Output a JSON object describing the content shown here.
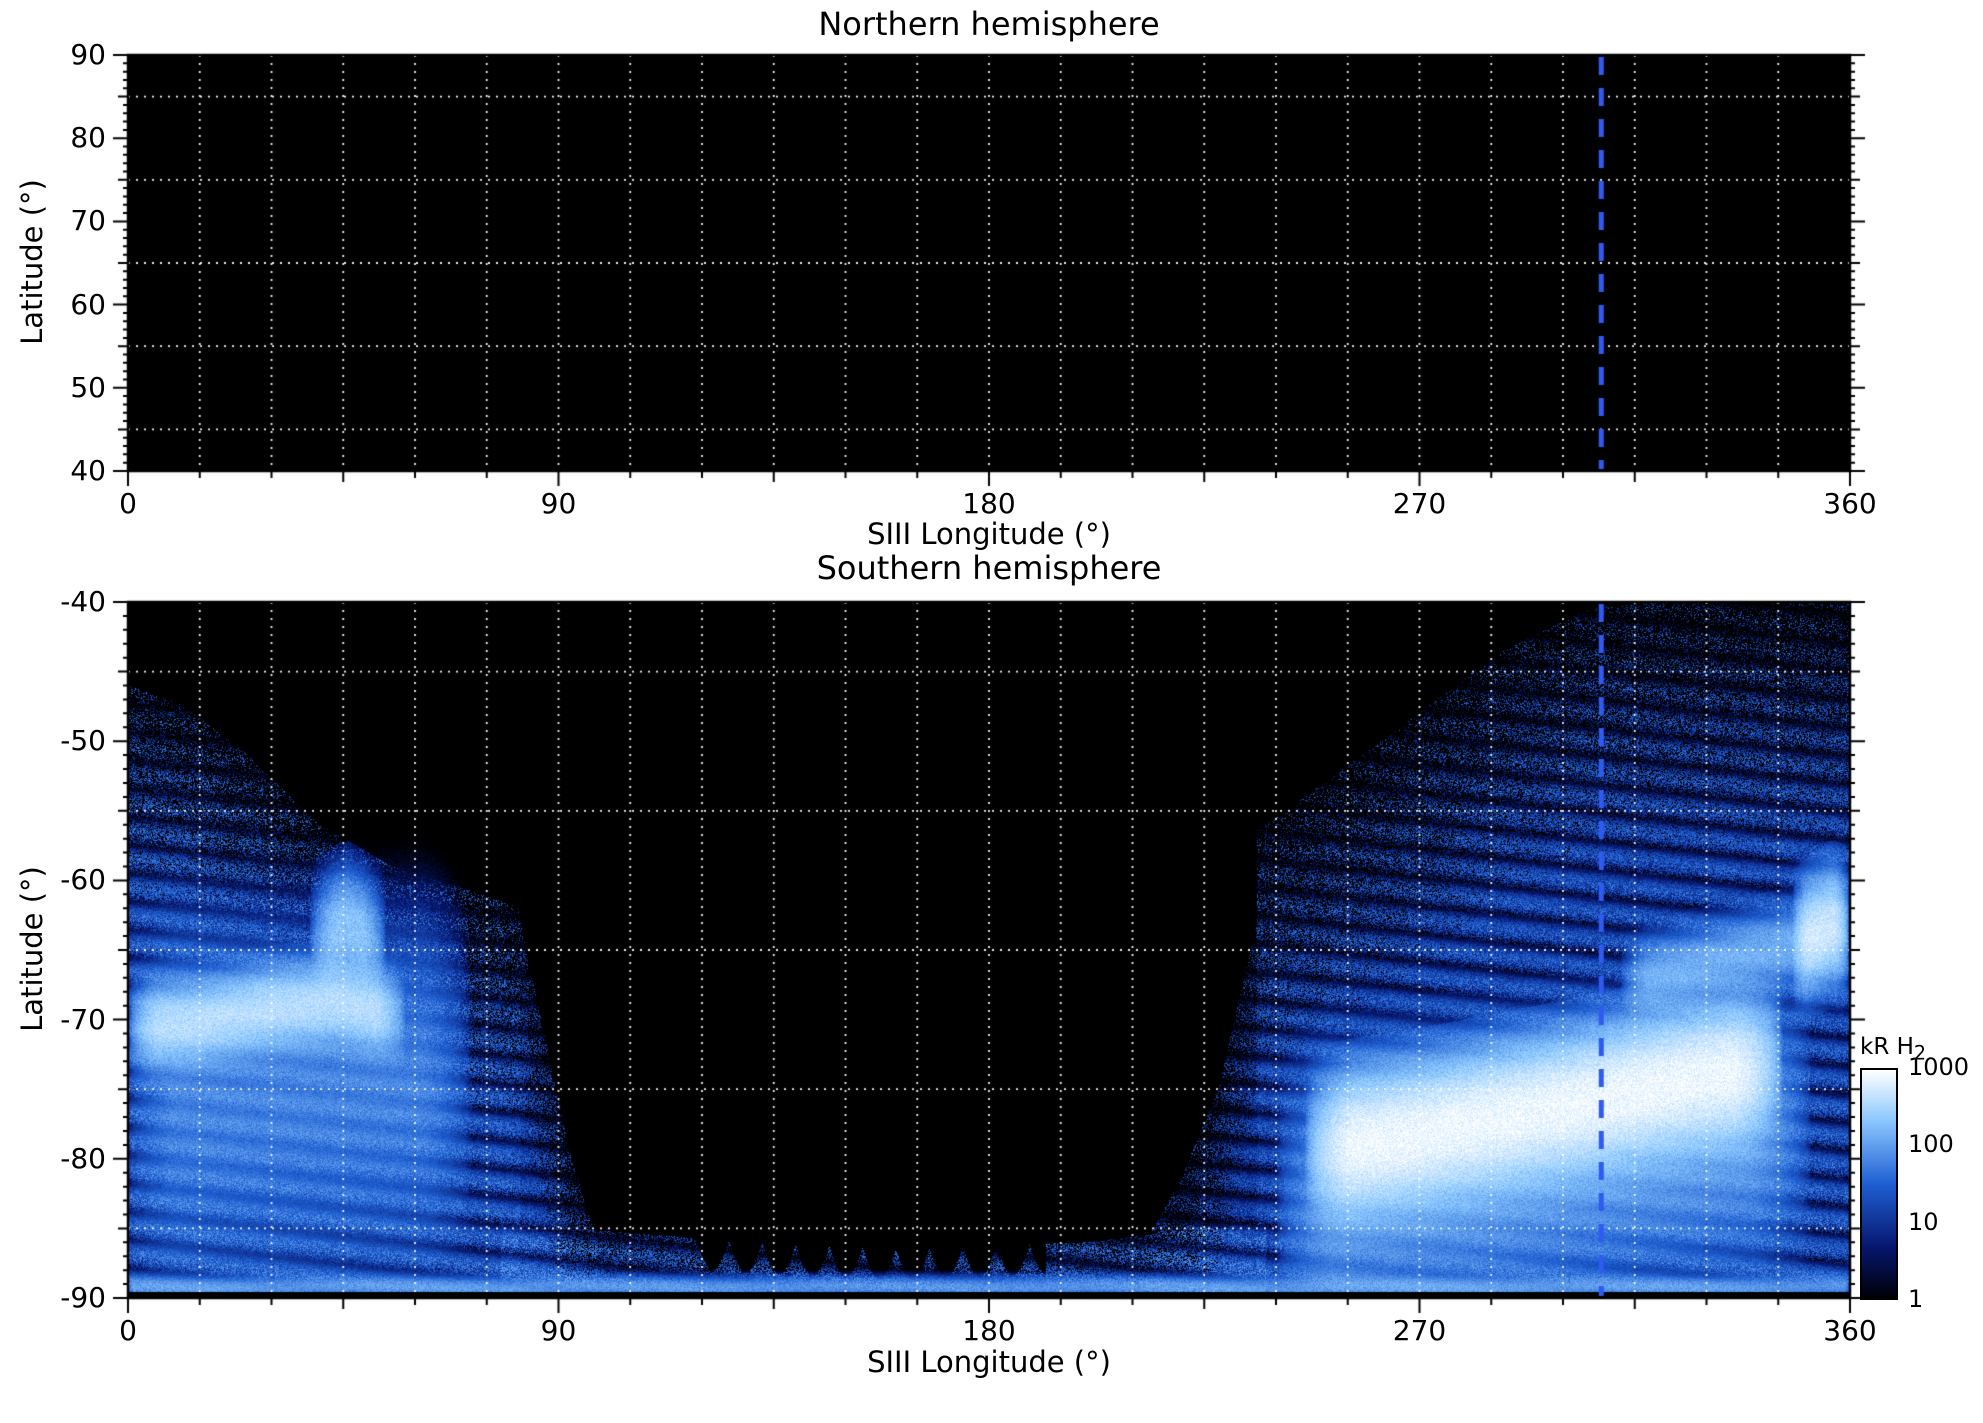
{
  "chart_data": [
    {
      "type": "heatmap",
      "panel": "northern",
      "title": "Northern hemisphere",
      "xlabel": "SIII Longitude (°)",
      "ylabel": "Latitude (°)",
      "xlim": [
        0,
        360
      ],
      "ylim": [
        40,
        90
      ],
      "xticks": [
        0,
        90,
        180,
        270,
        360
      ],
      "yticks": [
        90,
        80,
        70,
        60,
        50,
        40
      ],
      "grid": {
        "x_step": 15,
        "y_values": [
          45,
          55,
          65,
          75,
          85
        ],
        "style": "dotted",
        "color": "rgba(255,255,255,0.95)"
      },
      "marker_line": {
        "longitude": 308,
        "color": "#2f5bf0",
        "style": "dashed"
      },
      "background": "#000000",
      "emission": null
    },
    {
      "type": "heatmap",
      "panel": "southern",
      "title": "Southern hemisphere",
      "xlabel": "SIII Longitude (°)",
      "ylabel": "Latitude (°)",
      "xlim": [
        0,
        360
      ],
      "ylim": [
        -90,
        -40
      ],
      "xticks": [
        0,
        90,
        180,
        270,
        360
      ],
      "yticks": [
        -40,
        -50,
        -60,
        -70,
        -80,
        -90
      ],
      "grid": {
        "x_step": 15,
        "y_values": [
          -45,
          -55,
          -65,
          -75,
          -85
        ],
        "style": "dotted",
        "color": "rgba(255,255,255,0.95)"
      },
      "marker_line": {
        "longitude": 308,
        "color": "#2f5bf0",
        "style": "dashed"
      },
      "background": "#000000",
      "colorbar": {
        "label": "kR H",
        "label_sub": "2",
        "ticks": [
          1000,
          100,
          10,
          1
        ],
        "scale": "log",
        "min": 1,
        "max": 1000
      },
      "emission": {
        "unit": "kR H2",
        "log_max": 3,
        "colormap": [
          [
            0,
            [
              0,
              0,
              6
            ]
          ],
          [
            0.22,
            [
              6,
              22,
              110
            ]
          ],
          [
            0.5,
            [
              30,
              95,
              210
            ]
          ],
          [
            0.78,
            [
              140,
              200,
              255
            ]
          ],
          [
            1,
            [
              255,
              255,
              255
            ]
          ]
        ],
        "regions": [
          {
            "name": "dusk-emission-region",
            "lon": [
              0,
              82
            ],
            "top_lat_profile": [
              [
                0,
                -46
              ],
              [
                12,
                -47.5
              ],
              [
                25,
                -51
              ],
              [
                40,
                -56
              ],
              [
                55,
                -59
              ],
              [
                70,
                -60.5
              ],
              [
                82,
                -62
              ]
            ],
            "bottom_lat": -90,
            "base": 28,
            "min_density": 0.2,
            "density_ramp": 0.05
          },
          {
            "name": "dusk-edge-sweep",
            "lon": [
              82,
              98
            ],
            "top_lat_profile": [
              [
                82,
                -63
              ],
              [
                87,
                -71
              ],
              [
                92,
                -79
              ],
              [
                98,
                -86
              ]
            ],
            "bottom_lat": -90,
            "base": 20,
            "min_density": 0.3,
            "density_ramp": 0.05
          },
          {
            "name": "dawn-emission-region",
            "lon": [
              236,
              360
            ],
            "top_lat_profile": [
              [
                236,
                -56.5
              ],
              [
                252,
                -52.5
              ],
              [
                268,
                -48.5
              ],
              [
                285,
                -44
              ],
              [
                305,
                -40.5
              ],
              [
                320,
                -40
              ],
              [
                360,
                -40
              ]
            ],
            "bottom_lat": -90,
            "base": 22,
            "min_density": 0.16,
            "density_ramp": 0.045
          },
          {
            "name": "dawn-edge-sweep",
            "lon": [
              212,
              236
            ],
            "top_lat_profile": [
              [
                212,
                -86.5
              ],
              [
                220,
                -81.5
              ],
              [
                228,
                -75
              ],
              [
                236,
                -63
              ]
            ],
            "bottom_lat": -90,
            "base": 16,
            "min_density": 0.3,
            "density_ramp": 0.05
          },
          {
            "name": "polar-cap-band",
            "lon": [
              78,
              238
            ],
            "top_lat_profile": [
              [
                78,
                -84.5
              ],
              [
                100,
                -85.2
              ],
              [
                130,
                -86
              ],
              [
                160,
                -86.5
              ],
              [
                200,
                -86
              ],
              [
                238,
                -84.5
              ]
            ],
            "bottom_lat": -90,
            "base": 30,
            "min_density": 0.5,
            "density_ramp": 0.1,
            "scallop": {
              "lon": [
                118,
                192
              ],
              "amp": 2.2,
              "freq": 0.45
            }
          }
        ],
        "arcs": [
          {
            "name": "dusk-main-arc",
            "lon": [
              0,
              58
            ],
            "lat_profile": [
              [
                0,
                -70.6
              ],
              [
                14,
                -70.2
              ],
              [
                30,
                -69.2
              ],
              [
                44,
                -68.8
              ],
              [
                58,
                -69.8
              ]
            ],
            "width": 1.5,
            "peak": 430,
            "end_fade": 6
          },
          {
            "name": "dusk-bright-patch",
            "lon": [
              38,
              54
            ],
            "lat_profile": [
              [
                38,
                -64.5
              ],
              [
                46,
                -63.2
              ],
              [
                54,
                -64.8
              ]
            ],
            "width": 2.0,
            "peak": 240,
            "end_fade": 5
          },
          {
            "name": "dusk-diffuse-wash",
            "lon": [
              0,
              72
            ],
            "lat_profile": [
              [
                0,
                -76
              ],
              [
                35,
                -75
              ],
              [
                72,
                -74
              ]
            ],
            "width": 6,
            "peak": 55,
            "end_fade": 10
          },
          {
            "name": "dawn-main-arc",
            "lon": [
              246,
              346
            ],
            "lat_profile": [
              [
                246,
                -79.5
              ],
              [
                270,
                -78.2
              ],
              [
                300,
                -76.2
              ],
              [
                325,
                -74.4
              ],
              [
                346,
                -73.2
              ]
            ],
            "width": 2.5,
            "peak": 900,
            "end_fade": 10
          },
          {
            "name": "dawn-diffuse-wash",
            "lon": [
              240,
              352
            ],
            "lat_profile": [
              [
                240,
                -83
              ],
              [
                280,
                -81.5
              ],
              [
                320,
                -79
              ],
              [
                352,
                -77
              ]
            ],
            "width": 4.5,
            "peak": 110,
            "end_fade": 12
          },
          {
            "name": "dawn-high-arc",
            "lon": [
              312,
              360
            ],
            "lat_profile": [
              [
                312,
                -67.5
              ],
              [
                336,
                -65.5
              ],
              [
                360,
                -63.8
              ]
            ],
            "width": 1.4,
            "peak": 150,
            "end_fade": 6
          },
          {
            "name": "right-edge-bright-spot",
            "lon": [
              348,
              360
            ],
            "lat_profile": [
              [
                348,
                -64.5
              ],
              [
                356,
                -63.2
              ],
              [
                360,
                -63.5
              ]
            ],
            "width": 2.0,
            "peak": 520,
            "end_fade": 3
          },
          {
            "name": "low-lat-bottom-line",
            "lon": [
              0,
              360
            ],
            "lat_profile": [
              [
                0,
                -89.2
              ],
              [
                360,
                -89.2
              ]
            ],
            "width": 0.4,
            "peak": 90,
            "end_fade": 1
          }
        ]
      }
    }
  ]
}
